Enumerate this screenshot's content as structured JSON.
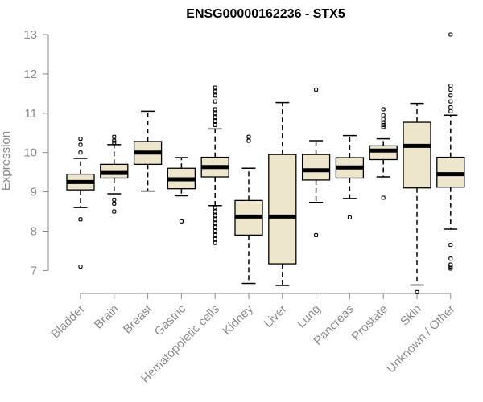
{
  "chart_data": {
    "type": "boxplot",
    "title": "ENSG00000162236 - STX5",
    "xlabel": "",
    "ylabel": "Expression",
    "ylim": [
      6.4,
      13.0
    ],
    "yticks": [
      7,
      8,
      9,
      10,
      11,
      12,
      13
    ],
    "box_color": "#ede6cd",
    "axis_color": "#8a8a8a",
    "categories": [
      "Bladder",
      "Brain",
      "Breast",
      "Gastric",
      "Hematopoietic cells",
      "Kidney",
      "Liver",
      "Lung",
      "Pancreas",
      "Prostate",
      "Skin",
      "Unknown / Other"
    ],
    "series": [
      {
        "name": "Bladder",
        "q1": 9.05,
        "median": 9.25,
        "q3": 9.45,
        "whisker_low": 8.6,
        "whisker_high": 9.85,
        "outliers": [
          10.35,
          10.2,
          10.0,
          8.3,
          7.1
        ]
      },
      {
        "name": "Brain",
        "q1": 9.35,
        "median": 9.48,
        "q3": 9.7,
        "whisker_low": 8.95,
        "whisker_high": 10.2,
        "outliers": [
          10.4,
          10.3,
          10.25,
          8.8,
          8.7,
          8.5
        ]
      },
      {
        "name": "Breast",
        "q1": 9.7,
        "median": 10.0,
        "q3": 10.28,
        "whisker_low": 9.02,
        "whisker_high": 11.05,
        "outliers": []
      },
      {
        "name": "Gastric",
        "q1": 9.08,
        "median": 9.32,
        "q3": 9.6,
        "whisker_low": 8.9,
        "whisker_high": 9.87,
        "outliers": [
          8.25
        ]
      },
      {
        "name": "Hematopoietic cells",
        "q1": 9.38,
        "median": 9.63,
        "q3": 9.88,
        "whisker_low": 8.65,
        "whisker_high": 10.6,
        "outliers": [
          11.65,
          11.55,
          11.45,
          11.3,
          11.1,
          11.0,
          10.9,
          10.8,
          10.7,
          8.6,
          8.5,
          8.4,
          8.3,
          8.2,
          8.1,
          8.0,
          7.9,
          7.8,
          7.7
        ]
      },
      {
        "name": "Kidney",
        "q1": 7.9,
        "median": 8.37,
        "q3": 8.78,
        "whisker_low": 6.67,
        "whisker_high": 9.6,
        "outliers": [
          10.4,
          10.3
        ]
      },
      {
        "name": "Liver",
        "q1": 7.17,
        "median": 8.37,
        "q3": 9.95,
        "whisker_low": 6.62,
        "whisker_high": 11.27,
        "outliers": []
      },
      {
        "name": "Lung",
        "q1": 9.3,
        "median": 9.55,
        "q3": 9.95,
        "whisker_low": 8.73,
        "whisker_high": 10.3,
        "outliers": [
          11.6,
          7.9
        ]
      },
      {
        "name": "Pancreas",
        "q1": 9.35,
        "median": 9.62,
        "q3": 9.87,
        "whisker_low": 8.83,
        "whisker_high": 10.43,
        "outliers": [
          8.35
        ]
      },
      {
        "name": "Prostate",
        "q1": 9.82,
        "median": 10.05,
        "q3": 10.17,
        "whisker_low": 9.38,
        "whisker_high": 10.35,
        "outliers": [
          11.1,
          10.95,
          10.85,
          10.75,
          10.7,
          10.65,
          8.85
        ]
      },
      {
        "name": "Skin",
        "q1": 9.1,
        "median": 10.17,
        "q3": 10.77,
        "whisker_low": 6.63,
        "whisker_high": 11.25,
        "outliers": [
          6.45
        ]
      },
      {
        "name": "Unknown / Other",
        "q1": 9.12,
        "median": 9.45,
        "q3": 9.88,
        "whisker_low": 8.05,
        "whisker_high": 10.95,
        "outliers": [
          13.0,
          11.7,
          11.6,
          11.45,
          11.3,
          11.15,
          11.05,
          7.65,
          7.3,
          7.15,
          7.1,
          7.05
        ]
      }
    ]
  }
}
